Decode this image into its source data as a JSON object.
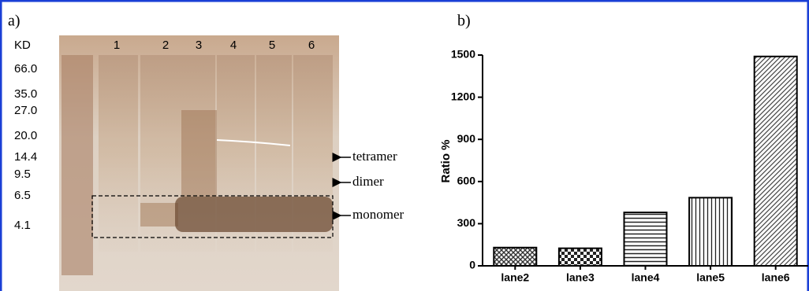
{
  "panel_labels": [
    "a)",
    "b)"
  ],
  "gel": {
    "unit": "KD",
    "markers": [
      "66.0",
      "35.0",
      "27.0",
      "20.0",
      "14.4",
      "9.5",
      "6.5",
      "4.1"
    ],
    "lanes": [
      "1",
      "2",
      "3",
      "4",
      "5",
      "6"
    ],
    "annotations": [
      "tetramer",
      "dimer",
      "monomer"
    ]
  },
  "chart_data": {
    "type": "bar",
    "ylabel": "Ratio %",
    "categories": [
      "lane2",
      "lane3",
      "lane4",
      "lane5",
      "lane6"
    ],
    "values": [
      130,
      125,
      380,
      485,
      1490
    ],
    "ylim": [
      0,
      1500
    ],
    "yticks": [
      0,
      300,
      600,
      900,
      1200,
      1500
    ],
    "color": "#000000"
  }
}
